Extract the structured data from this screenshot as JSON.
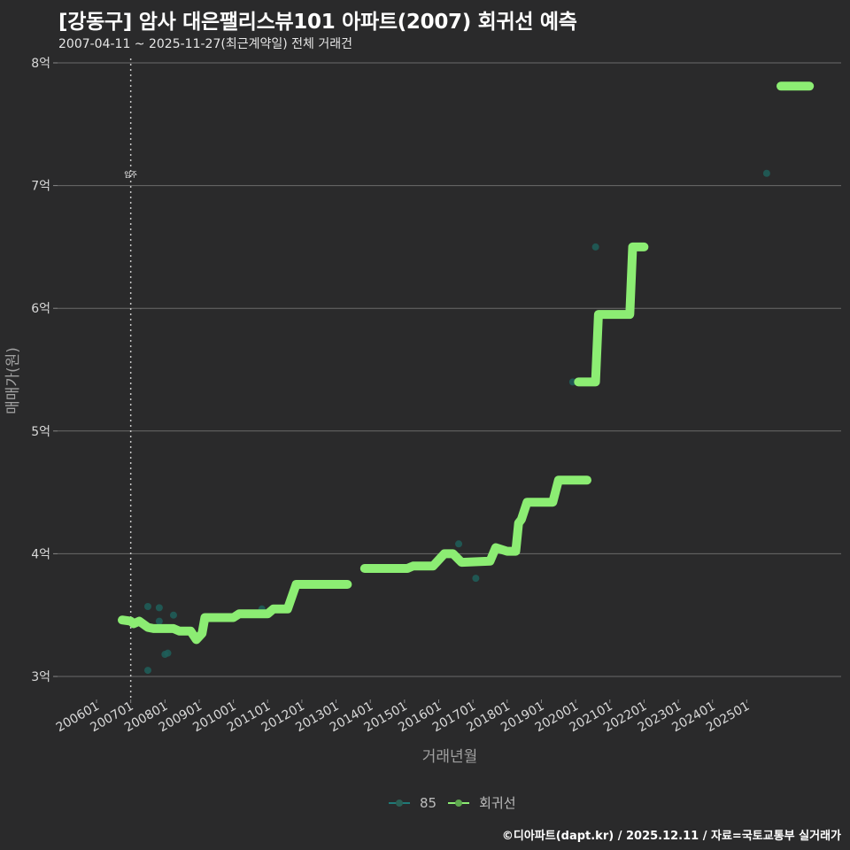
{
  "header": {
    "title": "[강동구] 암사 대은팰리스뷰101 아파트(2007) 회귀선 예측",
    "subtitle": "2007-04-11 ~ 2025-11-27(최근계약일) 전체 거래건"
  },
  "footer": {
    "credit": "©디아파트(dapt.kr) / 2025.12.11 / 자료=국토교통부 실거래가"
  },
  "legend": {
    "items": [
      {
        "label": "85",
        "color": "#1f6f6a"
      },
      {
        "label": "회귀선",
        "color": "#8ced73"
      }
    ]
  },
  "annotation": {
    "label": "입주",
    "x": "200701"
  },
  "colors": {
    "background": "#2a2a2b",
    "grid": "#6b6b6b",
    "regression": "#8ced73",
    "points": "#1f5f5a"
  },
  "chart_data": {
    "type": "line",
    "title": "[강동구] 암사 대은팰리스뷰101 아파트(2007) 회귀선 예측",
    "subtitle": "2007-04-11 ~ 2025-11-27(최근계약일) 전체 거래건",
    "xlabel": "거래년월",
    "ylabel": "매매가(원)",
    "x_ticks": [
      "200601",
      "200701",
      "200801",
      "200901",
      "201001",
      "201101",
      "201201",
      "201301",
      "201401",
      "201501",
      "201601",
      "201701",
      "201801",
      "201901",
      "202001",
      "202101",
      "202201",
      "202301",
      "202401",
      "202501"
    ],
    "y_ticks": [
      "3억",
      "4억",
      "5억",
      "6억",
      "7억",
      "8억"
    ],
    "ylim": [
      2.85,
      8.08
    ],
    "y_unit": "억",
    "grid": true,
    "legend_position": "bottom",
    "series": [
      {
        "name": "85",
        "type": "scatter",
        "points": [
          {
            "x": "2007-04",
            "y": 3.44
          },
          {
            "x": "2007-07",
            "y": 3.57
          },
          {
            "x": "2007-07",
            "y": 3.05
          },
          {
            "x": "2007-11",
            "y": 3.56
          },
          {
            "x": "2007-11",
            "y": 3.45
          },
          {
            "x": "2008-01",
            "y": 3.18
          },
          {
            "x": "2008-02",
            "y": 3.19
          },
          {
            "x": "2008-04",
            "y": 3.5
          },
          {
            "x": "2009-10",
            "y": 3.48
          },
          {
            "x": "2010-11",
            "y": 3.55
          },
          {
            "x": "2016-08",
            "y": 4.08
          },
          {
            "x": "2017-02",
            "y": 3.8
          },
          {
            "x": "2019-12",
            "y": 5.4
          },
          {
            "x": "2020-08",
            "y": 6.5
          },
          {
            "x": "2025-08",
            "y": 7.1
          }
        ]
      },
      {
        "name": "회귀선",
        "type": "line",
        "segments": [
          [
            {
              "x": "2006-10",
              "y": 3.46
            },
            {
              "x": "2007-01",
              "y": 3.45
            },
            {
              "x": "2007-02",
              "y": 3.43
            },
            {
              "x": "2007-04",
              "y": 3.45
            },
            {
              "x": "2007-07",
              "y": 3.4
            },
            {
              "x": "2007-09",
              "y": 3.39
            },
            {
              "x": "2008-04",
              "y": 3.39
            },
            {
              "x": "2008-06",
              "y": 3.37
            },
            {
              "x": "2008-10",
              "y": 3.37
            },
            {
              "x": "2008-12",
              "y": 3.3
            },
            {
              "x": "2009-02",
              "y": 3.35
            },
            {
              "x": "2009-03",
              "y": 3.48
            },
            {
              "x": "2009-06",
              "y": 3.48
            },
            {
              "x": "2010-01",
              "y": 3.48
            },
            {
              "x": "2010-03",
              "y": 3.51
            },
            {
              "x": "2011-01",
              "y": 3.51
            },
            {
              "x": "2011-03",
              "y": 3.55
            },
            {
              "x": "2011-08",
              "y": 3.55
            },
            {
              "x": "2011-11",
              "y": 3.75
            },
            {
              "x": "2013-05",
              "y": 3.75
            }
          ],
          [
            {
              "x": "2013-11",
              "y": 3.88
            },
            {
              "x": "2015-02",
              "y": 3.88
            },
            {
              "x": "2015-04",
              "y": 3.9
            },
            {
              "x": "2015-11",
              "y": 3.9
            },
            {
              "x": "2016-03",
              "y": 4.0
            },
            {
              "x": "2016-06",
              "y": 4.0
            },
            {
              "x": "2016-09",
              "y": 3.93
            },
            {
              "x": "2017-07",
              "y": 3.94
            },
            {
              "x": "2017-09",
              "y": 4.05
            },
            {
              "x": "2018-01",
              "y": 4.02
            },
            {
              "x": "2018-04",
              "y": 4.02
            },
            {
              "x": "2018-05",
              "y": 4.25
            },
            {
              "x": "2018-06",
              "y": 4.28
            },
            {
              "x": "2018-08",
              "y": 4.42
            },
            {
              "x": "2019-05",
              "y": 4.42
            },
            {
              "x": "2019-07",
              "y": 4.6
            },
            {
              "x": "2020-05",
              "y": 4.6
            }
          ],
          [
            {
              "x": "2020-02",
              "y": 5.4
            },
            {
              "x": "2020-08",
              "y": 5.4
            },
            {
              "x": "2020-09",
              "y": 5.95
            },
            {
              "x": "2021-08",
              "y": 5.95
            },
            {
              "x": "2021-09",
              "y": 6.5
            },
            {
              "x": "2022-01",
              "y": 6.5
            }
          ],
          [
            {
              "x": "2026-01",
              "y": 7.81
            },
            {
              "x": "2026-11",
              "y": 7.81
            }
          ]
        ]
      }
    ]
  }
}
